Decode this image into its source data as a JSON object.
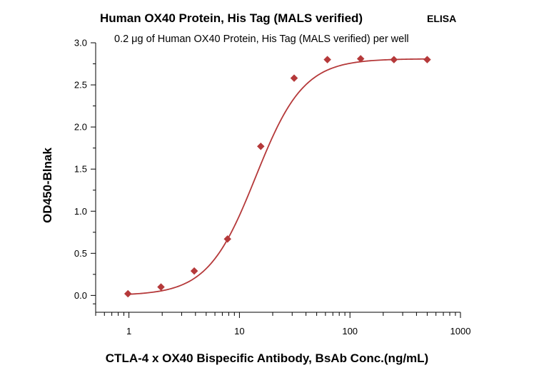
{
  "chart_data": {
    "type": "scatter",
    "title": "Human OX40 Protein, His Tag (MALS verified)",
    "title_tag": "ELISA",
    "subtitle": "0.2 μg of Human OX40 Protein, His Tag (MALS verified) per well",
    "xlabel": "CTLA-4 x OX40 Bispecific Antibody, BsAb Conc.(ng/mL)",
    "ylabel": "OD450-Blnak",
    "x_scale": "log",
    "xlim": [
      0.5,
      1000
    ],
    "ylim": [
      -0.2,
      3.0
    ],
    "x_ticks": [
      1,
      10,
      100,
      1000
    ],
    "x_tick_labels": [
      "1",
      "10",
      "100",
      "1000"
    ],
    "y_ticks": [
      0.0,
      0.5,
      1.0,
      1.5,
      2.0,
      2.5,
      3.0
    ],
    "y_tick_labels": [
      "0.0",
      "0.5",
      "1.0",
      "1.5",
      "2.0",
      "2.5",
      "3.0"
    ],
    "grid": false,
    "color": "#b5393a",
    "series": [
      {
        "marker": "diamond",
        "x": [
          0.98,
          1.95,
          3.9,
          7.8,
          15.6,
          31.25,
          62.5,
          125,
          250,
          500
        ],
        "y": [
          0.02,
          0.1,
          0.29,
          0.67,
          1.77,
          2.58,
          2.8,
          2.81,
          2.8,
          2.8
        ]
      }
    ],
    "fit": {
      "type": "4PL",
      "bottom": 0.0,
      "top": 2.81,
      "ec50": 14.0,
      "hill": 2.0
    }
  }
}
